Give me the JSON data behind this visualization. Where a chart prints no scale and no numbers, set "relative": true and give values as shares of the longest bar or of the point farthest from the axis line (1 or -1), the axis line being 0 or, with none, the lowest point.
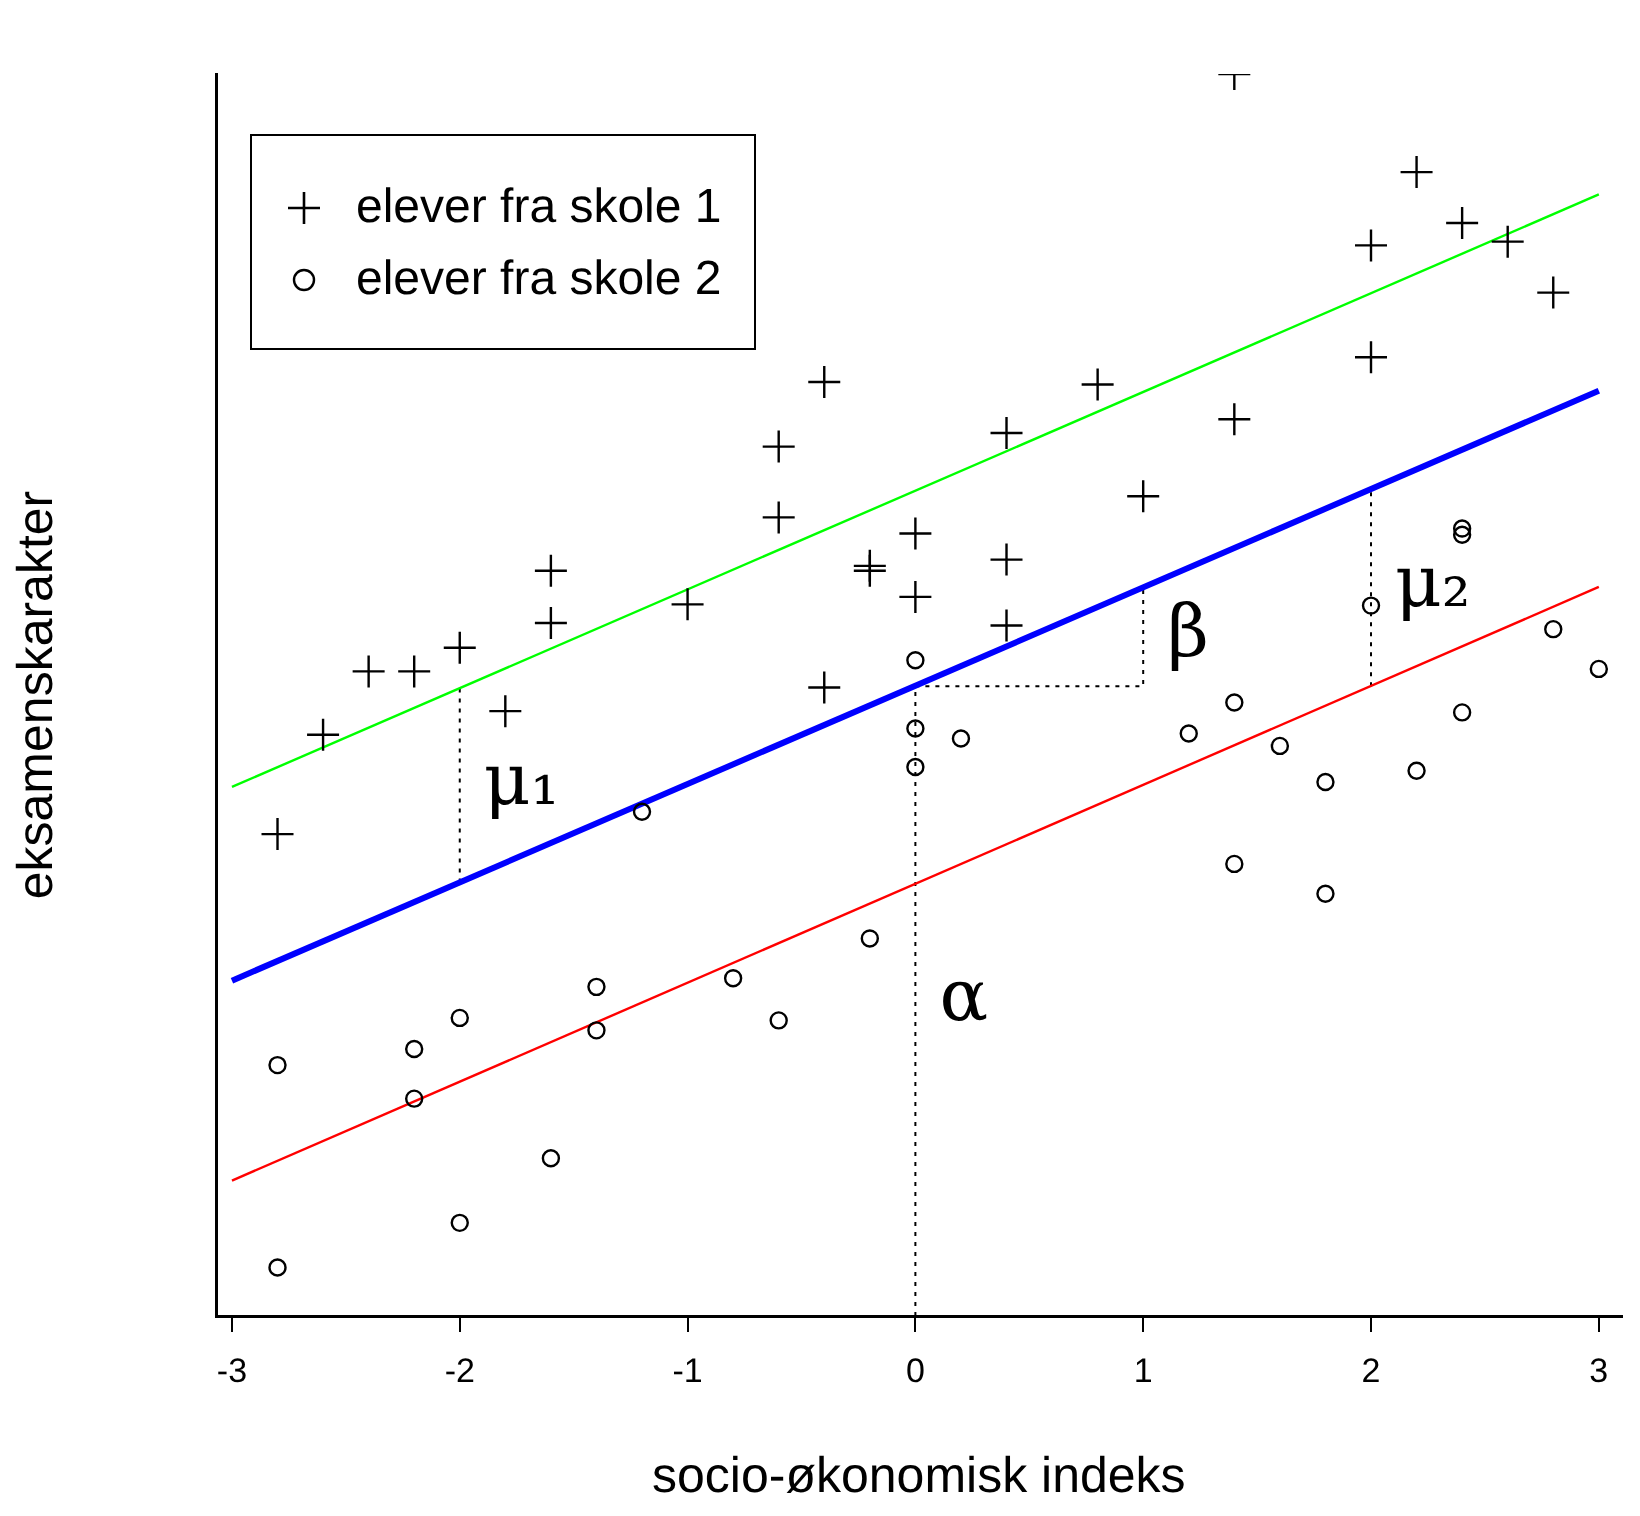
{
  "chart_data": {
    "type": "scatter",
    "xlabel": "socio-økonomisk indeks",
    "ylabel": "eksamenskarakter",
    "relative": true,
    "xlim": [
      -3.07,
      3.1
    ],
    "xticks": [
      -3,
      -2,
      -1,
      0,
      1,
      2,
      3
    ],
    "grid": false,
    "legend": "top left",
    "series": [
      {
        "name": "elever fra skole 1",
        "color": "#000000",
        "marker": "cross",
        "x": [
          -2.8,
          -2.6,
          -2.4,
          -2.2,
          -2.0,
          -1.8,
          -1.6,
          -1.6,
          -1.0,
          -0.6,
          -0.6,
          -0.4,
          -0.4,
          -0.2,
          -0.2,
          0,
          0,
          0.4,
          0.4,
          0.4,
          0.8,
          1.0,
          1.4,
          1.4,
          2.0,
          2.0,
          2.2,
          2.4,
          2.6,
          2.8
        ],
        "values": [
          0.388,
          0.468,
          0.519,
          0.519,
          0.538,
          0.487,
          0.558,
          0.6,
          0.573,
          0.643,
          0.7,
          0.752,
          0.506,
          0.604,
          0.6,
          0.63,
          0.579,
          0.711,
          0.609,
          0.556,
          0.75,
          0.66,
          1.0,
          0.722,
          0.862,
          0.772,
          0.921,
          0.88,
          0.865,
          0.824
        ]
      },
      {
        "name": "elever fra skole 2",
        "color": "#000000",
        "marker": "circle",
        "x": [
          -2.8,
          -2.8,
          -2.2,
          -2.2,
          -2.0,
          -2.0,
          -1.6,
          -1.4,
          -1.4,
          -1.2,
          -0.8,
          -0.6,
          -0.2,
          0,
          0,
          0,
          0.2,
          1.2,
          1.4,
          1.4,
          1.6,
          1.8,
          1.8,
          2.0,
          2.2,
          2.4,
          2.4,
          2.4,
          2.8,
          3.0
        ],
        "values": [
          0.202,
          0.039,
          0.215,
          0.175,
          0.24,
          0.075,
          0.127,
          0.265,
          0.23,
          0.406,
          0.272,
          0.238,
          0.304,
          0.473,
          0.442,
          0.528,
          0.465,
          0.469,
          0.494,
          0.364,
          0.459,
          0.43,
          0.34,
          0.572,
          0.439,
          0.634,
          0.629,
          0.486,
          0.553,
          0.521
        ]
      },
      {
        "type": "line",
        "color": "#00ff00",
        "marker": "none",
        "line_style": "solid",
        "x": [
          -3,
          3
        ],
        "values": [
          0.426,
          0.903
        ]
      },
      {
        "type": "line",
        "color": "#0000ff",
        "marker": "none",
        "line_style": "solid",
        "x": [
          -3,
          3
        ],
        "values": [
          0.27,
          0.745
        ]
      },
      {
        "type": "line",
        "color": "#ff0000",
        "marker": "none",
        "line_style": "solid",
        "x": [
          -3,
          3
        ],
        "values": [
          0.109,
          0.587
        ]
      },
      {
        "type": "line",
        "color": "#000000",
        "marker": "none",
        "line_style": "dotted",
        "x": [
          0,
          0
        ],
        "values": [
          0,
          0.507
        ]
      },
      {
        "type": "line",
        "color": "#000000",
        "marker": "none",
        "line_style": "dotted",
        "x": [
          0,
          1,
          1
        ],
        "values": [
          0.507,
          0.507,
          0.586
        ]
      },
      {
        "type": "line",
        "color": "#000000",
        "marker": "none",
        "line_style": "dotted",
        "x": [
          -2,
          -2
        ],
        "values": [
          0.349,
          0.505
        ]
      },
      {
        "type": "line",
        "color": "#000000",
        "marker": "none",
        "line_style": "dotted",
        "x": [
          2,
          2
        ],
        "values": [
          0.507,
          0.666
        ]
      }
    ],
    "annotations": [
      "α",
      "β",
      "μ₁",
      "μ₂"
    ]
  }
}
